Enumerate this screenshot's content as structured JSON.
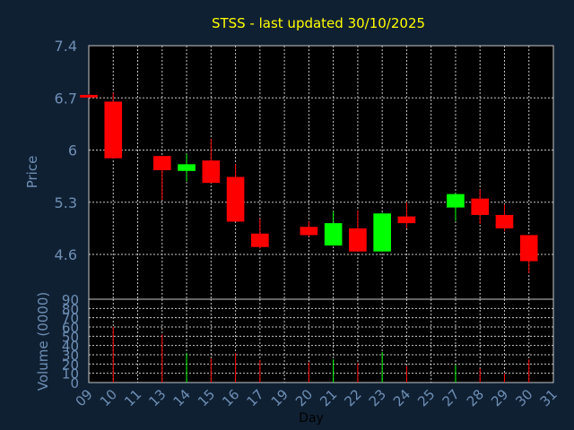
{
  "colors": {
    "background": "#102033",
    "panel": "#000000",
    "title": "#ffff00",
    "axis_text": "#6e8fb4",
    "grid": "#c8c8c8",
    "up": "#00ff00",
    "down": "#ff0000"
  },
  "chart_data": [
    {
      "type": "candlestick",
      "title": "STSS - last updated 30/10/2025",
      "ylabel": "Price",
      "ylim": [
        4.0,
        7.4
      ],
      "yticks": [
        "7.4",
        "6.7",
        "6",
        "5.3",
        "4.6"
      ],
      "grid": true,
      "candles": [
        {
          "day": 9,
          "open": 6.74,
          "high": 6.75,
          "low": 6.71,
          "close": 6.71
        },
        {
          "day": 10,
          "open": 6.65,
          "high": 6.77,
          "low": 5.89,
          "close": 5.89
        },
        {
          "day": 13,
          "open": 5.92,
          "high": 5.92,
          "low": 5.33,
          "close": 5.73
        },
        {
          "day": 14,
          "open": 5.72,
          "high": 5.95,
          "low": 5.58,
          "close": 5.81
        },
        {
          "day": 15,
          "open": 5.86,
          "high": 6.15,
          "low": 5.56,
          "close": 5.56
        },
        {
          "day": 16,
          "open": 5.64,
          "high": 5.81,
          "low": 5.04,
          "close": 5.04
        },
        {
          "day": 17,
          "open": 4.88,
          "high": 5.08,
          "low": 4.68,
          "close": 4.7
        },
        {
          "day": 20,
          "open": 4.97,
          "high": 5.05,
          "low": 4.84,
          "close": 4.86
        },
        {
          "day": 21,
          "open": 4.72,
          "high": 5.18,
          "low": 4.72,
          "close": 5.02
        },
        {
          "day": 22,
          "open": 4.95,
          "high": 5.19,
          "low": 4.64,
          "close": 4.64
        },
        {
          "day": 23,
          "open": 4.64,
          "high": 5.16,
          "low": 4.64,
          "close": 5.15
        },
        {
          "day": 24,
          "open": 5.11,
          "high": 5.3,
          "low": 4.95,
          "close": 5.02
        },
        {
          "day": 27,
          "open": 5.23,
          "high": 5.42,
          "low": 5.05,
          "close": 5.41
        },
        {
          "day": 28,
          "open": 5.35,
          "high": 5.48,
          "low": 5.01,
          "close": 5.13
        },
        {
          "day": 29,
          "open": 5.13,
          "high": 5.27,
          "low": 4.91,
          "close": 4.95
        },
        {
          "day": 30,
          "open": 4.86,
          "high": 4.86,
          "low": 4.35,
          "close": 4.51
        }
      ]
    },
    {
      "type": "bar",
      "ylabel": "Volume (0000)",
      "xlabel": "Day",
      "ylim": [
        0,
        90
      ],
      "yticks": [
        "90",
        "80",
        "70",
        "60",
        "50",
        "40",
        "30",
        "20",
        "10",
        "0"
      ],
      "xticks": [
        "09",
        "10",
        "11",
        "13",
        "14",
        "15",
        "16",
        "17",
        "19",
        "20",
        "21",
        "22",
        "23",
        "24",
        "25",
        "27",
        "28",
        "29",
        "30",
        "31"
      ],
      "grid": true,
      "bars": [
        {
          "day": 10,
          "value": 60,
          "dir": "down"
        },
        {
          "day": 13,
          "value": 52,
          "dir": "down"
        },
        {
          "day": 14,
          "value": 32,
          "dir": "up"
        },
        {
          "day": 15,
          "value": 26,
          "dir": "down"
        },
        {
          "day": 16,
          "value": 32,
          "dir": "down"
        },
        {
          "day": 17,
          "value": 24,
          "dir": "down"
        },
        {
          "day": 20,
          "value": 22,
          "dir": "down"
        },
        {
          "day": 21,
          "value": 25,
          "dir": "up"
        },
        {
          "day": 22,
          "value": 21,
          "dir": "down"
        },
        {
          "day": 23,
          "value": 33,
          "dir": "up"
        },
        {
          "day": 24,
          "value": 18,
          "dir": "down"
        },
        {
          "day": 27,
          "value": 19,
          "dir": "up"
        },
        {
          "day": 28,
          "value": 15,
          "dir": "down"
        },
        {
          "day": 29,
          "value": 10,
          "dir": "down"
        },
        {
          "day": 30,
          "value": 25,
          "dir": "down"
        }
      ]
    }
  ]
}
